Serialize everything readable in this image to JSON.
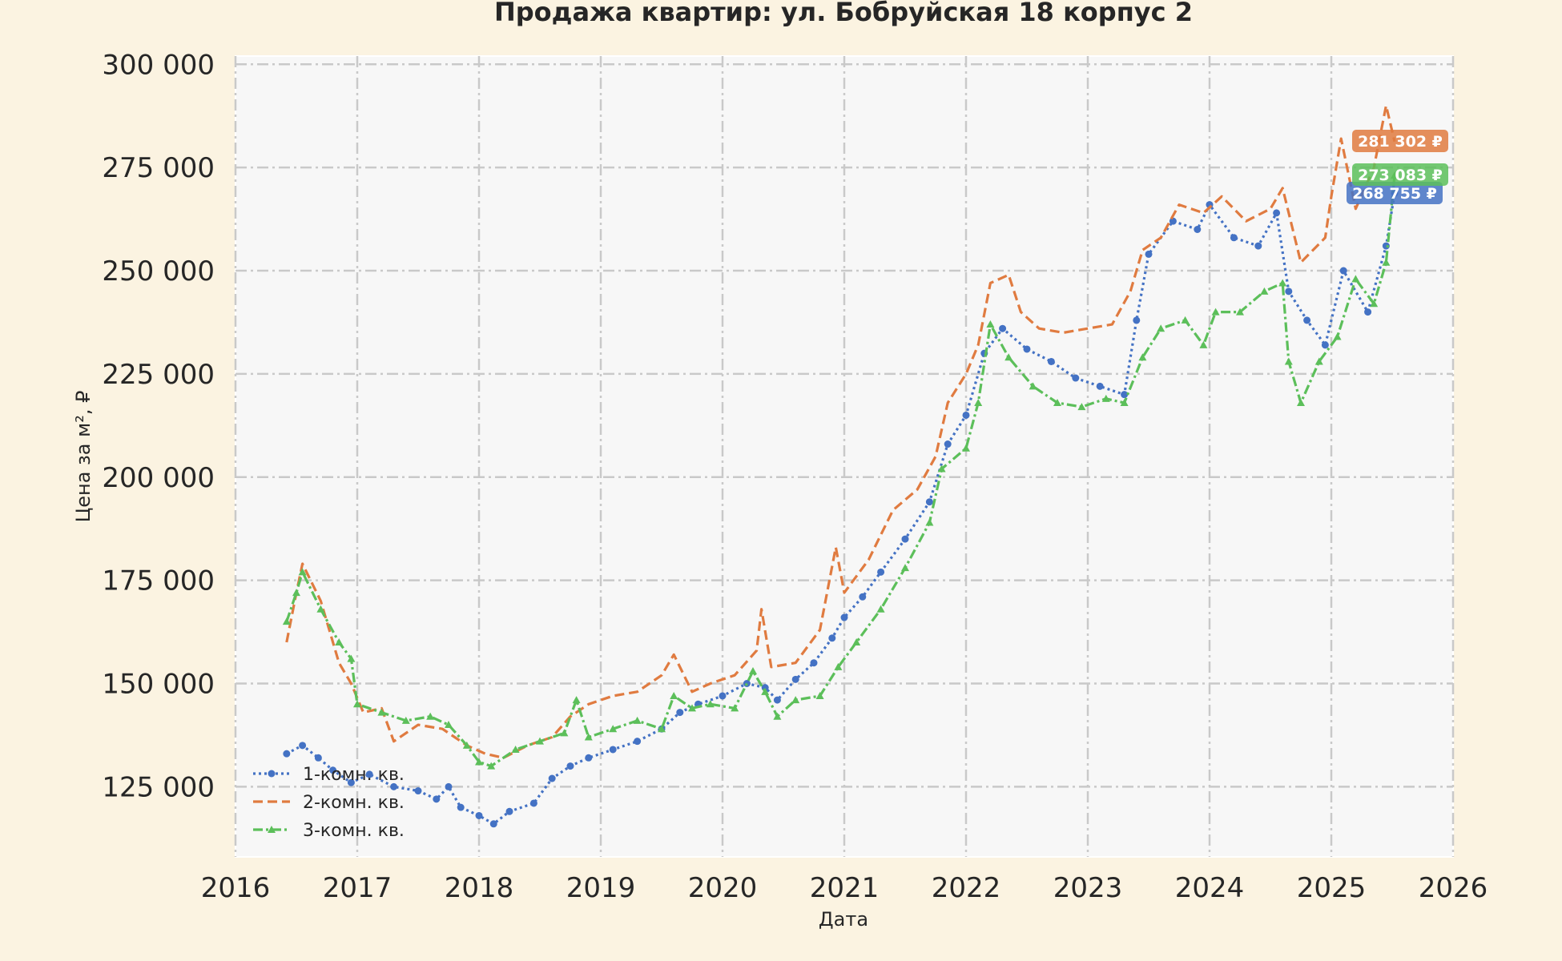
{
  "chart_data": {
    "type": "line",
    "title": "Продажа квартир: ул. Бобруйская 18 корпус 2",
    "xlabel": "Дата",
    "ylabel": "Цена за м², ₽",
    "xlim": [
      2016.0,
      2026.0
    ],
    "ylim": [
      108000,
      302000
    ],
    "x_ticks": [
      2016,
      2017,
      2018,
      2019,
      2020,
      2021,
      2022,
      2023,
      2024,
      2025,
      2026
    ],
    "x_tick_labels": [
      "2016",
      "2017",
      "2018",
      "2019",
      "2020",
      "2021",
      "2022",
      "2023",
      "2024",
      "2025",
      "2026"
    ],
    "y_ticks": [
      125000,
      150000,
      175000,
      200000,
      225000,
      250000,
      275000,
      300000
    ],
    "y_tick_labels": [
      "125 000",
      "150 000",
      "175 000",
      "200 000",
      "225 000",
      "250 000",
      "275 000",
      "300 000"
    ],
    "grid": true,
    "legend_position": "bottom-left",
    "series": [
      {
        "name": "1-комн. кв.",
        "color": "#4472c4",
        "style": "dotted-marker",
        "last_value_label": "268 755 ₽",
        "points": [
          [
            2016.42,
            133000
          ],
          [
            2016.55,
            135000
          ],
          [
            2016.68,
            132000
          ],
          [
            2016.8,
            129000
          ],
          [
            2016.95,
            126000
          ],
          [
            2017.1,
            128000
          ],
          [
            2017.3,
            125000
          ],
          [
            2017.5,
            124000
          ],
          [
            2017.65,
            122000
          ],
          [
            2017.75,
            125000
          ],
          [
            2017.85,
            120000
          ],
          [
            2018.0,
            118000
          ],
          [
            2018.12,
            116000
          ],
          [
            2018.25,
            119000
          ],
          [
            2018.45,
            121000
          ],
          [
            2018.6,
            127000
          ],
          [
            2018.75,
            130000
          ],
          [
            2018.9,
            132000
          ],
          [
            2019.1,
            134000
          ],
          [
            2019.3,
            136000
          ],
          [
            2019.5,
            139000
          ],
          [
            2019.65,
            143000
          ],
          [
            2019.8,
            145000
          ],
          [
            2020.0,
            147000
          ],
          [
            2020.2,
            150000
          ],
          [
            2020.35,
            149000
          ],
          [
            2020.45,
            146000
          ],
          [
            2020.6,
            151000
          ],
          [
            2020.75,
            155000
          ],
          [
            2020.9,
            161000
          ],
          [
            2021.0,
            166000
          ],
          [
            2021.15,
            171000
          ],
          [
            2021.3,
            177000
          ],
          [
            2021.5,
            185000
          ],
          [
            2021.7,
            194000
          ],
          [
            2021.85,
            208000
          ],
          [
            2022.0,
            215000
          ],
          [
            2022.15,
            230000
          ],
          [
            2022.3,
            236000
          ],
          [
            2022.5,
            231000
          ],
          [
            2022.7,
            228000
          ],
          [
            2022.9,
            224000
          ],
          [
            2023.1,
            222000
          ],
          [
            2023.3,
            220000
          ],
          [
            2023.4,
            238000
          ],
          [
            2023.5,
            254000
          ],
          [
            2023.7,
            262000
          ],
          [
            2023.9,
            260000
          ],
          [
            2024.0,
            266000
          ],
          [
            2024.2,
            258000
          ],
          [
            2024.4,
            256000
          ],
          [
            2024.55,
            264000
          ],
          [
            2024.65,
            245000
          ],
          [
            2024.8,
            238000
          ],
          [
            2024.95,
            232000
          ],
          [
            2025.1,
            250000
          ],
          [
            2025.3,
            240000
          ],
          [
            2025.45,
            256000
          ],
          [
            2025.52,
            268755
          ]
        ]
      },
      {
        "name": "2-комн. кв.",
        "color": "#e07b40",
        "style": "dashed",
        "last_value_label": "281 302 ₽",
        "points": [
          [
            2016.42,
            160000
          ],
          [
            2016.5,
            172000
          ],
          [
            2016.55,
            179000
          ],
          [
            2016.7,
            170000
          ],
          [
            2016.85,
            155000
          ],
          [
            2016.95,
            150000
          ],
          [
            2017.05,
            143000
          ],
          [
            2017.2,
            144000
          ],
          [
            2017.3,
            136000
          ],
          [
            2017.5,
            140000
          ],
          [
            2017.7,
            139000
          ],
          [
            2017.9,
            135000
          ],
          [
            2018.05,
            133000
          ],
          [
            2018.2,
            132000
          ],
          [
            2018.4,
            135000
          ],
          [
            2018.6,
            137000
          ],
          [
            2018.75,
            142000
          ],
          [
            2018.9,
            145000
          ],
          [
            2019.1,
            147000
          ],
          [
            2019.3,
            148000
          ],
          [
            2019.5,
            152000
          ],
          [
            2019.6,
            157000
          ],
          [
            2019.75,
            148000
          ],
          [
            2019.9,
            150000
          ],
          [
            2020.1,
            152000
          ],
          [
            2020.28,
            158000
          ],
          [
            2020.32,
            168000
          ],
          [
            2020.4,
            154000
          ],
          [
            2020.6,
            155000
          ],
          [
            2020.8,
            163000
          ],
          [
            2020.93,
            183000
          ],
          [
            2021.0,
            172000
          ],
          [
            2021.2,
            180000
          ],
          [
            2021.4,
            192000
          ],
          [
            2021.6,
            197000
          ],
          [
            2021.75,
            205000
          ],
          [
            2021.85,
            218000
          ],
          [
            2022.0,
            225000
          ],
          [
            2022.1,
            232000
          ],
          [
            2022.2,
            247000
          ],
          [
            2022.35,
            249000
          ],
          [
            2022.45,
            240000
          ],
          [
            2022.6,
            236000
          ],
          [
            2022.8,
            235000
          ],
          [
            2023.0,
            236000
          ],
          [
            2023.2,
            237000
          ],
          [
            2023.35,
            245000
          ],
          [
            2023.45,
            255000
          ],
          [
            2023.6,
            258000
          ],
          [
            2023.75,
            266000
          ],
          [
            2023.95,
            264000
          ],
          [
            2024.1,
            268000
          ],
          [
            2024.3,
            262000
          ],
          [
            2024.5,
            265000
          ],
          [
            2024.6,
            270000
          ],
          [
            2024.75,
            252000
          ],
          [
            2024.95,
            258000
          ],
          [
            2025.0,
            268000
          ],
          [
            2025.08,
            282000
          ],
          [
            2025.2,
            265000
          ],
          [
            2025.35,
            275000
          ],
          [
            2025.45,
            290000
          ],
          [
            2025.52,
            281302
          ]
        ]
      },
      {
        "name": "3-комн. кв.",
        "color": "#5cbf5a",
        "style": "dashdot-marker",
        "last_value_label": "273 083 ₽",
        "points": [
          [
            2016.42,
            165000
          ],
          [
            2016.5,
            172000
          ],
          [
            2016.55,
            177000
          ],
          [
            2016.7,
            168000
          ],
          [
            2016.85,
            160000
          ],
          [
            2016.95,
            156000
          ],
          [
            2017.0,
            145000
          ],
          [
            2017.2,
            143000
          ],
          [
            2017.4,
            141000
          ],
          [
            2017.6,
            142000
          ],
          [
            2017.75,
            140000
          ],
          [
            2017.9,
            135000
          ],
          [
            2018.0,
            131000
          ],
          [
            2018.1,
            130000
          ],
          [
            2018.3,
            134000
          ],
          [
            2018.5,
            136000
          ],
          [
            2018.7,
            138000
          ],
          [
            2018.8,
            146000
          ],
          [
            2018.9,
            137000
          ],
          [
            2019.1,
            139000
          ],
          [
            2019.3,
            141000
          ],
          [
            2019.5,
            139000
          ],
          [
            2019.6,
            147000
          ],
          [
            2019.75,
            144000
          ],
          [
            2019.9,
            145000
          ],
          [
            2020.1,
            144000
          ],
          [
            2020.25,
            153000
          ],
          [
            2020.35,
            148000
          ],
          [
            2020.45,
            142000
          ],
          [
            2020.6,
            146000
          ],
          [
            2020.8,
            147000
          ],
          [
            2020.95,
            154000
          ],
          [
            2021.1,
            160000
          ],
          [
            2021.3,
            168000
          ],
          [
            2021.5,
            178000
          ],
          [
            2021.7,
            189000
          ],
          [
            2021.8,
            202000
          ],
          [
            2022.0,
            207000
          ],
          [
            2022.1,
            218000
          ],
          [
            2022.2,
            237000
          ],
          [
            2022.35,
            229000
          ],
          [
            2022.55,
            222000
          ],
          [
            2022.75,
            218000
          ],
          [
            2022.95,
            217000
          ],
          [
            2023.15,
            219000
          ],
          [
            2023.3,
            218000
          ],
          [
            2023.45,
            229000
          ],
          [
            2023.6,
            236000
          ],
          [
            2023.8,
            238000
          ],
          [
            2023.95,
            232000
          ],
          [
            2024.05,
            240000
          ],
          [
            2024.25,
            240000
          ],
          [
            2024.45,
            245000
          ],
          [
            2024.6,
            247000
          ],
          [
            2024.65,
            228000
          ],
          [
            2024.75,
            218000
          ],
          [
            2024.9,
            228000
          ],
          [
            2025.05,
            234000
          ],
          [
            2025.2,
            248000
          ],
          [
            2025.35,
            242000
          ],
          [
            2025.45,
            252000
          ],
          [
            2025.52,
            273083
          ]
        ]
      }
    ]
  }
}
